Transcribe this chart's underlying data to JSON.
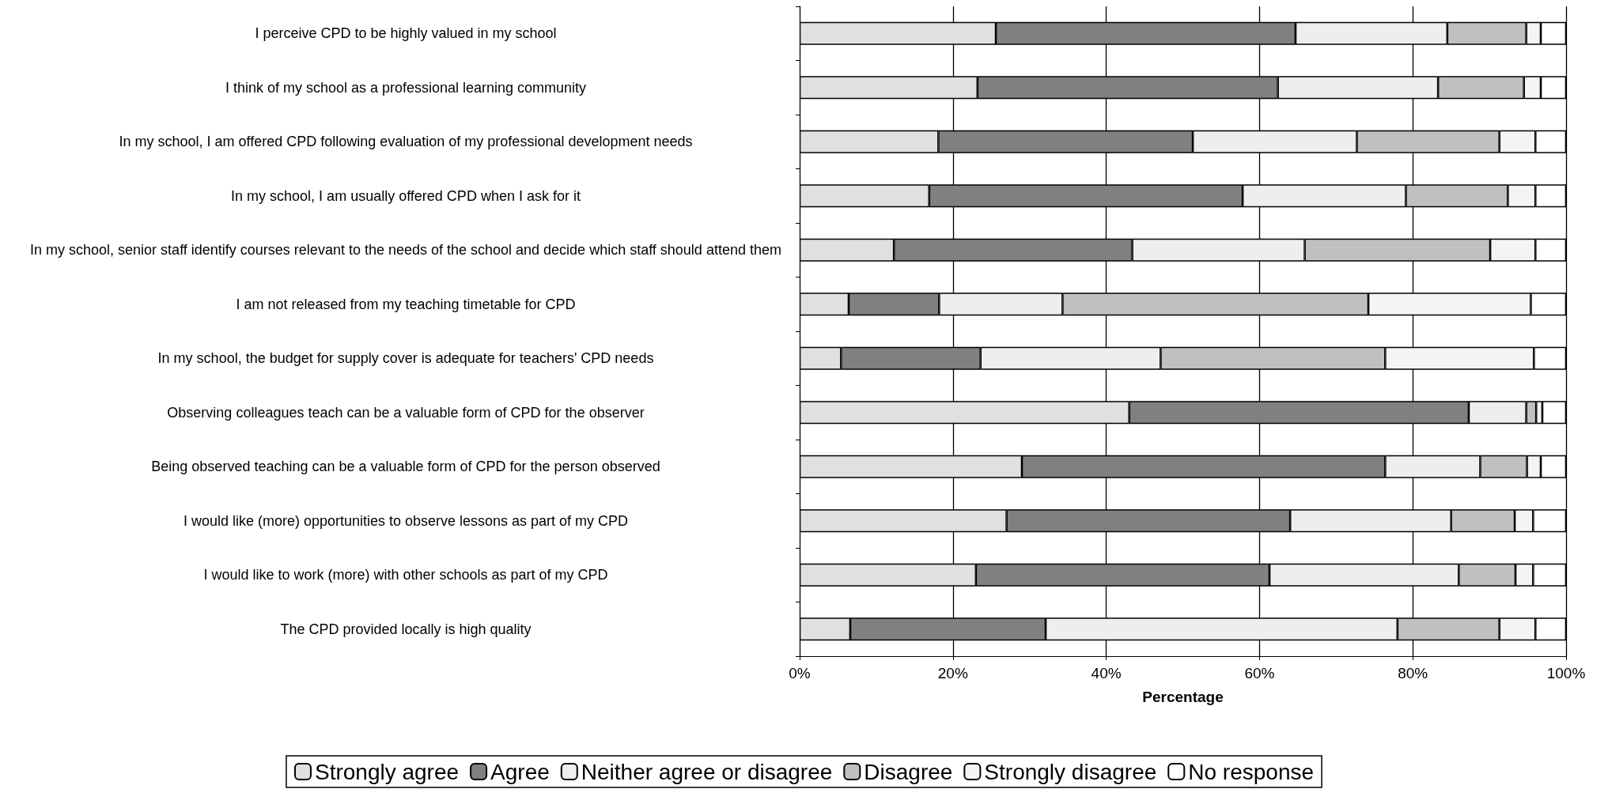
{
  "chart_data": {
    "type": "bar",
    "orientation": "horizontal",
    "stacked": true,
    "xlabel": "Percentage",
    "categories": [
      "I perceive CPD to be highly valued in my school",
      "I think of my school as a professional learning community",
      "In my school, I am offered CPD following evaluation of my professional development needs",
      "In my school, I am usually offered CPD when I ask for it",
      "In my school, senior staff identify courses relevant to the needs of the school and decide which staff should attend them",
      "I am not released from my teaching timetable for CPD",
      "In my school, the budget for supply cover is adequate for teachers' CPD needs",
      "Observing colleagues teach can be a valuable form of CPD for the observer",
      "Being observed teaching can be a valuable form of CPD for the person observed",
      "I would like (more) opportunities to observe lessons as part of my CPD",
      "I would like to work (more) with other schools as part of my CPD",
      "The CPD provided locally is high quality"
    ],
    "series": [
      {
        "name": "Strongly agree",
        "color": "#e0e0e0",
        "values": [
          25.6,
          23.2,
          18.1,
          16.9,
          12.3,
          6.4,
          5.4,
          43.0,
          29.0,
          27.0,
          23.0,
          6.6
        ]
      },
      {
        "name": "Agree",
        "color": "#808080",
        "values": [
          39.1,
          39.2,
          33.2,
          40.9,
          31.1,
          11.8,
          18.2,
          44.3,
          47.4,
          37.0,
          38.3,
          25.5
        ]
      },
      {
        "name": "Neither agree or disagree",
        "color": "#eeeeee",
        "values": [
          19.8,
          20.9,
          21.4,
          21.3,
          22.5,
          16.1,
          23.5,
          7.5,
          12.4,
          21.0,
          24.7,
          45.9
        ]
      },
      {
        "name": "Disagree",
        "color": "#c0c0c0",
        "values": [
          10.3,
          11.2,
          18.6,
          13.3,
          24.2,
          39.9,
          29.3,
          1.3,
          6.1,
          8.3,
          7.4,
          13.3
        ]
      },
      {
        "name": "Strongly disagree",
        "color": "#f4f4f4",
        "values": [
          1.9,
          2.2,
          4.7,
          3.6,
          5.9,
          21.2,
          19.4,
          0.8,
          1.8,
          2.4,
          2.3,
          4.7
        ]
      },
      {
        "name": "No response",
        "color": "#ffffff",
        "values": [
          3.3,
          3.3,
          4.0,
          4.0,
          4.0,
          4.6,
          4.2,
          3.1,
          3.3,
          4.3,
          4.3,
          4.0
        ]
      }
    ],
    "xlim": [
      0,
      100
    ],
    "xticks": [
      {
        "value": 0,
        "label": "0%"
      },
      {
        "value": 20,
        "label": "20%"
      },
      {
        "value": 40,
        "label": "40%"
      },
      {
        "value": 60,
        "label": "60%"
      },
      {
        "value": 80,
        "label": "80%"
      },
      {
        "value": 100,
        "label": "100%"
      }
    ],
    "grid": "x",
    "legend": "bottom"
  }
}
